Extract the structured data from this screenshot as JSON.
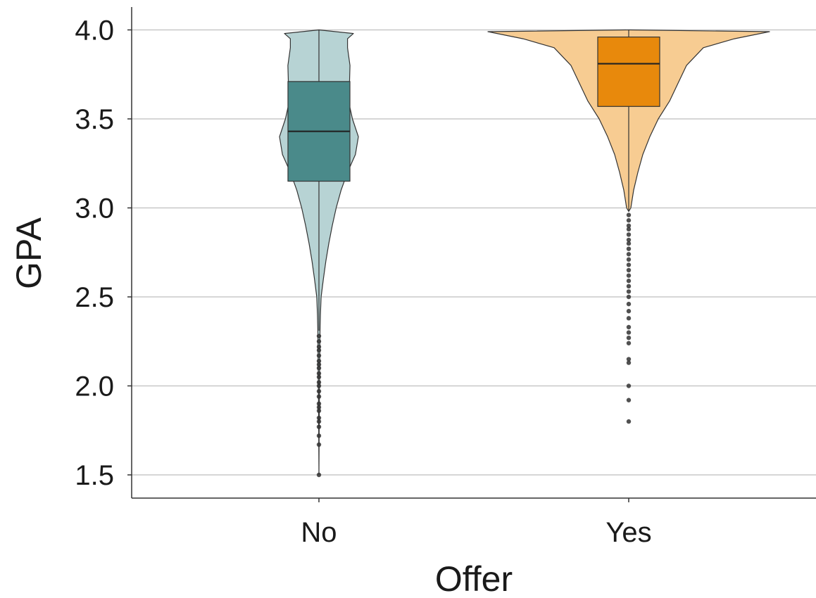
{
  "chart_data": {
    "type": "violin",
    "xlabel": "Offer",
    "ylabel": "GPA",
    "categories": [
      "No",
      "Yes"
    ],
    "ylim": [
      1.37,
      4.13
    ],
    "yticks": [
      1.5,
      2.0,
      2.5,
      3.0,
      3.5,
      4.0
    ],
    "ytick_labels": [
      "1.5",
      "2.0",
      "2.5",
      "3.0",
      "3.5",
      "4.0"
    ],
    "grid": "horizontal",
    "legend": "none",
    "series": [
      {
        "category": "No",
        "violin_color": "#b7d3d4",
        "box_color": "#4a8a8a",
        "box": {
          "q1": 3.15,
          "median": 3.43,
          "q3": 3.71,
          "whisker_low": 2.31,
          "whisker_high": 4.0
        },
        "density": [
          [
            1.5,
            0.0
          ],
          [
            1.8,
            0.005
          ],
          [
            2.0,
            0.012
          ],
          [
            2.2,
            0.018
          ],
          [
            2.3,
            0.022
          ],
          [
            2.4,
            0.03
          ],
          [
            2.5,
            0.045
          ],
          [
            2.6,
            0.09
          ],
          [
            2.7,
            0.14
          ],
          [
            2.8,
            0.2
          ],
          [
            2.9,
            0.27
          ],
          [
            3.0,
            0.35
          ],
          [
            3.1,
            0.45
          ],
          [
            3.2,
            0.58
          ],
          [
            3.3,
            0.74
          ],
          [
            3.4,
            0.8
          ],
          [
            3.5,
            0.68
          ],
          [
            3.6,
            0.6
          ],
          [
            3.7,
            0.62
          ],
          [
            3.8,
            0.63
          ],
          [
            3.9,
            0.58
          ],
          [
            3.95,
            0.58
          ],
          [
            3.98,
            0.7
          ],
          [
            4.0,
            0.0
          ]
        ],
        "outliers": [
          2.28,
          2.25,
          2.22,
          2.2,
          2.17,
          2.14,
          2.12,
          2.1,
          2.07,
          2.05,
          2.02,
          2.0,
          1.97,
          1.94,
          1.9,
          1.88,
          1.86,
          1.82,
          1.8,
          1.77,
          1.72,
          1.67,
          1.5
        ]
      },
      {
        "category": "Yes",
        "violin_color": "#f7cc92",
        "box_color": "#e8890c",
        "box": {
          "q1": 3.57,
          "median": 3.81,
          "q3": 3.96,
          "whisker_low": 2.98,
          "whisker_high": 4.0
        },
        "density": [
          [
            2.98,
            0.0
          ],
          [
            3.0,
            0.015
          ],
          [
            3.1,
            0.035
          ],
          [
            3.2,
            0.065
          ],
          [
            3.3,
            0.1
          ],
          [
            3.4,
            0.15
          ],
          [
            3.5,
            0.21
          ],
          [
            3.6,
            0.29
          ],
          [
            3.7,
            0.35
          ],
          [
            3.8,
            0.41
          ],
          [
            3.9,
            0.53
          ],
          [
            3.95,
            0.75
          ],
          [
            3.99,
            1.0
          ],
          [
            4.0,
            0.0
          ]
        ],
        "outliers": [
          2.96,
          2.93,
          2.9,
          2.88,
          2.85,
          2.82,
          2.8,
          2.77,
          2.74,
          2.71,
          2.68,
          2.65,
          2.62,
          2.59,
          2.56,
          2.53,
          2.5,
          2.46,
          2.42,
          2.38,
          2.33,
          2.3,
          2.27,
          2.24,
          2.15,
          2.13,
          2.0,
          1.92,
          1.8
        ]
      }
    ]
  }
}
